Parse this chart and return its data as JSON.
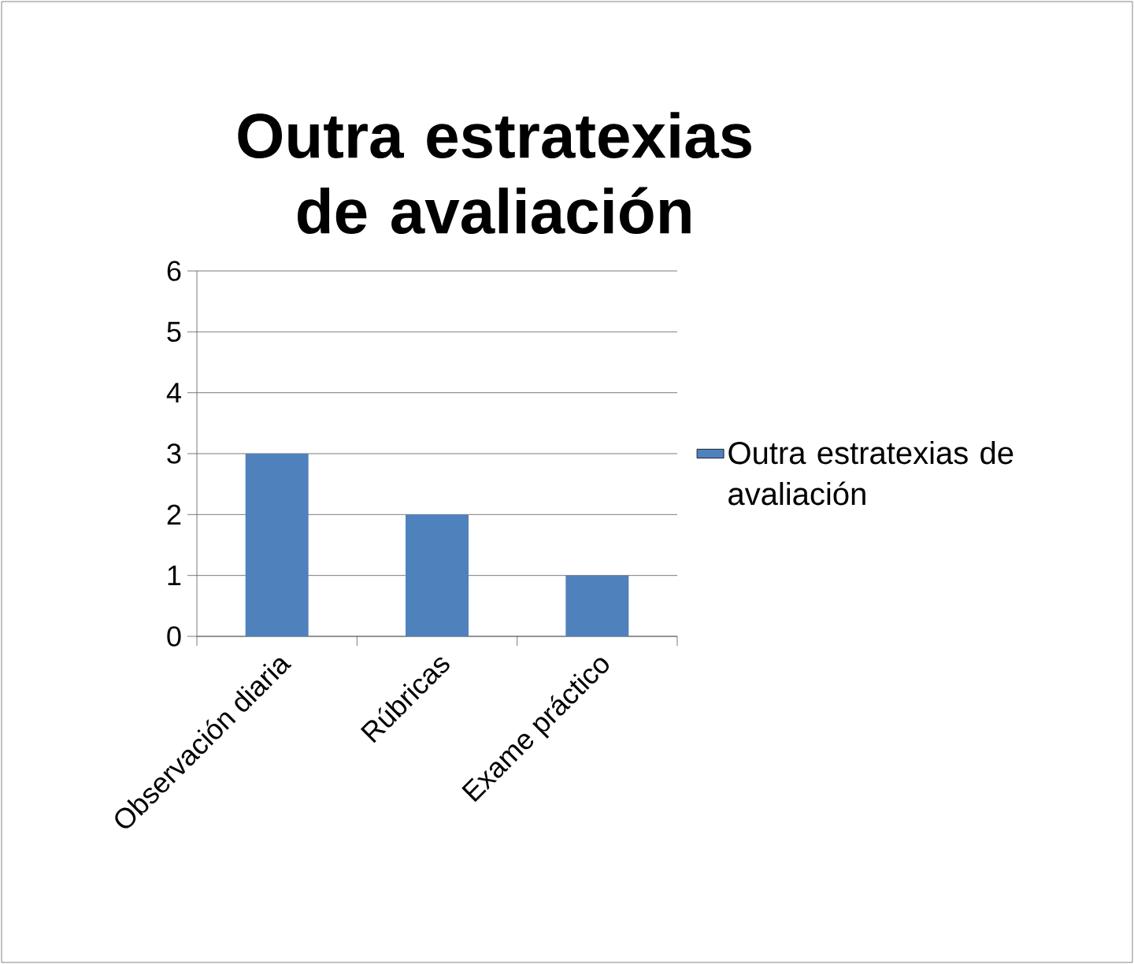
{
  "chart_data": {
    "type": "bar",
    "title": "Outra estratexias de avaliación",
    "categories": [
      "Observación diaria",
      "Rúbricas",
      "Exame práctico"
    ],
    "series": [
      {
        "name": "Outra estratexias de avaliación",
        "color": "#4f81bd",
        "values": [
          3,
          2,
          1
        ]
      }
    ],
    "ylim": [
      0,
      6
    ],
    "yticks": [
      0,
      1,
      2,
      3,
      4,
      5,
      6
    ],
    "grid": "y",
    "legend": "right"
  }
}
